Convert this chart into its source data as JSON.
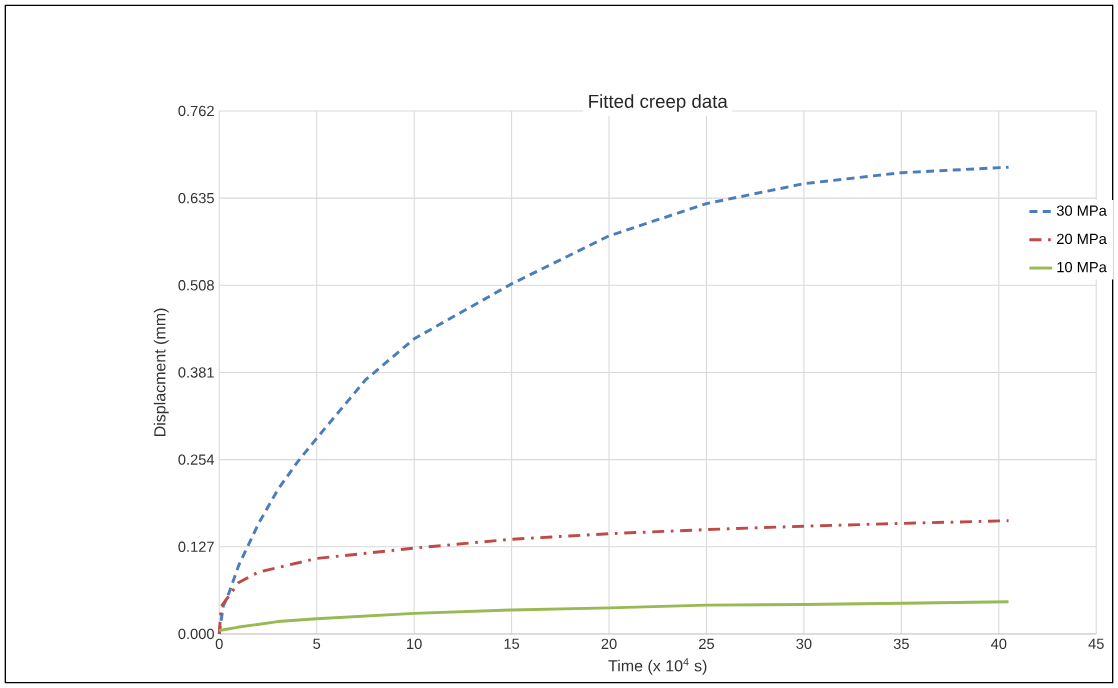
{
  "chart_data": {
    "type": "line",
    "title": "Fitted creep data",
    "xlabel": "Time (x 10$^{4}$ s)",
    "ylabel": "Displacment (mm)",
    "xlim": [
      0,
      45
    ],
    "xticks": [
      0,
      5,
      10,
      15,
      20,
      25,
      30,
      35,
      40,
      45
    ],
    "ylim": [
      0,
      0.762
    ],
    "yticks": [
      {
        "value": 0,
        "label": "0.000"
      },
      0.127,
      0.254,
      0.381,
      0.508,
      0.635,
      0.762
    ],
    "grid": true,
    "legend": "right",
    "marker": "none",
    "series": [
      {
        "name": "30 MPa",
        "color": "#4a7ebb",
        "line_style": "dashed",
        "x": [
          0,
          0.2,
          0.5,
          1,
          2,
          3,
          4,
          5,
          7.5,
          10,
          15,
          20,
          25,
          30,
          35,
          40.5
        ],
        "values": [
          0,
          0.04,
          0.06,
          0.1,
          0.16,
          0.21,
          0.25,
          0.285,
          0.37,
          0.43,
          0.51,
          0.58,
          0.627,
          0.656,
          0.672,
          0.68
        ]
      },
      {
        "name": "20 MPa",
        "color": "#be4b48",
        "line_style": "dashdot",
        "x": [
          0,
          0.1,
          1,
          2,
          5,
          10,
          15,
          20,
          25,
          30,
          35,
          40.5
        ],
        "values": [
          0,
          0.04,
          0.075,
          0.09,
          0.11,
          0.125,
          0.138,
          0.146,
          0.152,
          0.157,
          0.161,
          0.165
        ]
      },
      {
        "name": "10 MPa",
        "color": "#98b954",
        "line_style": "solid",
        "x": [
          0,
          1,
          3,
          5,
          10,
          15,
          20,
          25,
          30,
          36,
          40.5
        ],
        "values": [
          0.005,
          0.01,
          0.018,
          0.022,
          0.03,
          0.035,
          0.038,
          0.042,
          0.043,
          0.045,
          0.047
        ]
      }
    ]
  }
}
